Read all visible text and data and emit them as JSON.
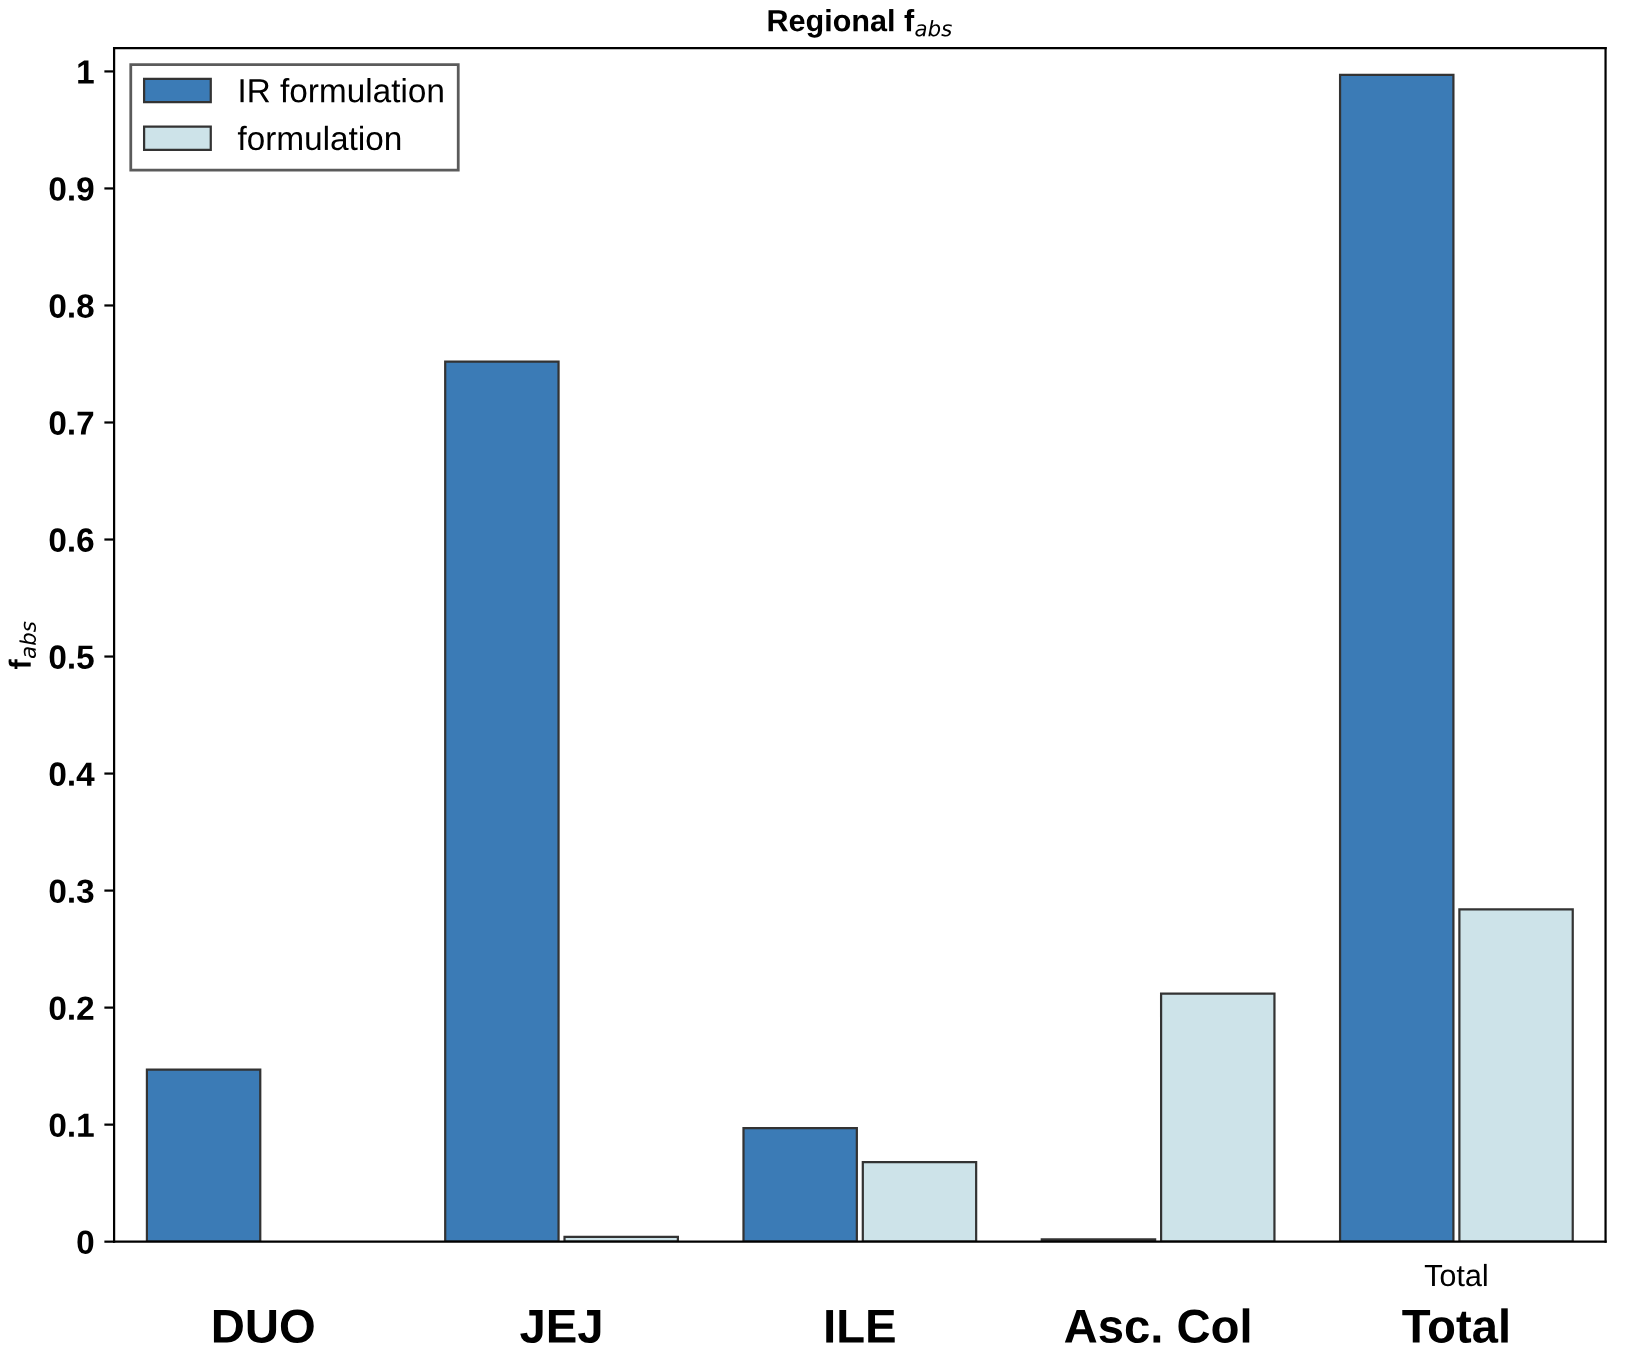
{
  "chart_data": {
    "type": "bar",
    "title": "Regional f$_{abs}$",
    "ylabel": "f$_{abs}$",
    "categories": [
      "DUO",
      "JEJ",
      "ILE",
      "Asc. Col",
      "Total"
    ],
    "series": [
      {
        "name": "IR formulation",
        "color": "#3b7bb6",
        "values": [
          0.147,
          0.752,
          0.097,
          0.002,
          0.997
        ]
      },
      {
        "name": "formulation",
        "color": "#cde3e9",
        "values": [
          null,
          0.004,
          0.068,
          0.212,
          0.284
        ]
      }
    ],
    "ylim": [
      0,
      1.02
    ],
    "yticks": [
      0,
      0.1,
      0.2,
      0.3,
      0.4,
      0.5,
      0.6,
      0.7,
      0.8,
      0.9,
      1
    ],
    "legend": "top left",
    "grid": false,
    "annotations": [
      "Total"
    ]
  }
}
